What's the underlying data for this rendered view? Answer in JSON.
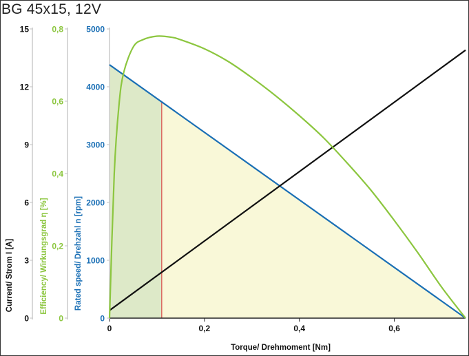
{
  "chart_data": {
    "type": "line",
    "title": "BG 45x15, 12V",
    "xlabel": "Torque/ Drehmoment [Nm]",
    "xlim": [
      0,
      0.75
    ],
    "xticks": [
      "0",
      "0,2",
      "0,4",
      "0,6"
    ],
    "xtick_values": [
      0,
      0.2,
      0.4,
      0.6
    ],
    "operating_point_torque": 0.11,
    "axes": {
      "current": {
        "label": "Current/ Strom I [A]",
        "ylim": [
          0,
          15
        ],
        "ticks": [
          "0",
          "3",
          "6",
          "9",
          "12",
          "15"
        ],
        "tick_values": [
          0,
          3,
          6,
          9,
          12,
          15
        ],
        "color": "#111111"
      },
      "efficiency": {
        "label": "Efficiency/ Wirkungsgrad η [%]",
        "ylim": [
          0,
          0.8
        ],
        "ticks": [
          "0",
          "0,2",
          "0,4",
          "0,6",
          "0,8"
        ],
        "tick_values": [
          0,
          0.2,
          0.4,
          0.6,
          0.8
        ],
        "color": "#8cc63f"
      },
      "speed": {
        "label": "Rated speed/ Drehzahl n [rpm]",
        "ylim": [
          0,
          5000
        ],
        "ticks": [
          "0",
          "1000",
          "2000",
          "3000",
          "4000",
          "5000"
        ],
        "tick_values": [
          0,
          1000,
          2000,
          3000,
          4000,
          5000
        ],
        "color": "#1a6fb5"
      }
    },
    "series": [
      {
        "axis": "speed",
        "color": "#1a6fb5",
        "x": [
          0,
          0.75
        ],
        "y": [
          4380,
          0
        ]
      },
      {
        "axis": "current",
        "color": "#111111",
        "x": [
          0,
          0.75
        ],
        "y": [
          0.4,
          13.9
        ]
      },
      {
        "axis": "efficiency",
        "color": "#8cc63f",
        "x": [
          0,
          0.01,
          0.02,
          0.03,
          0.05,
          0.07,
          0.1,
          0.13,
          0.15,
          0.2,
          0.25,
          0.3,
          0.35,
          0.4,
          0.45,
          0.5,
          0.55,
          0.6,
          0.65,
          0.7,
          0.75
        ],
        "y": [
          0,
          0.4,
          0.59,
          0.68,
          0.75,
          0.77,
          0.78,
          0.777,
          0.77,
          0.745,
          0.71,
          0.665,
          0.615,
          0.56,
          0.5,
          0.43,
          0.355,
          0.27,
          0.18,
          0.085,
          0
        ]
      }
    ],
    "colors": {
      "fill_left": "#dde9c8",
      "fill_right": "#f9f8d8",
      "marker": "#d9534f",
      "grid_axis": "#cccccc"
    }
  }
}
